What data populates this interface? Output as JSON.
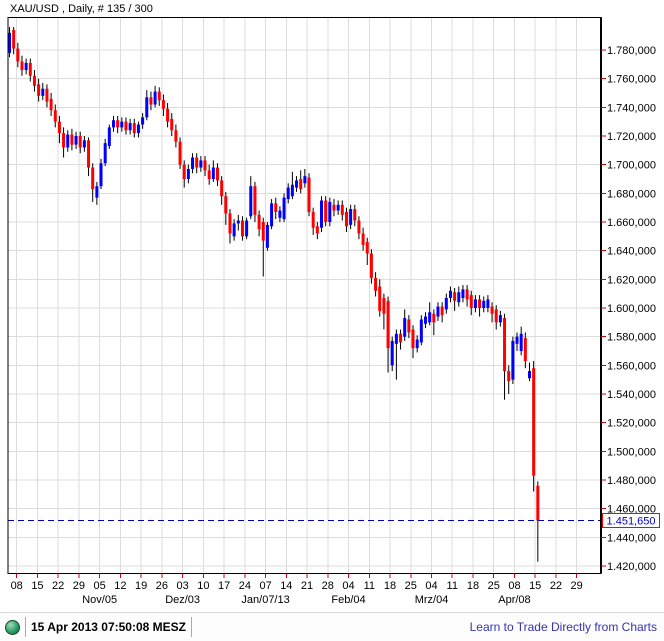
{
  "title": "XAU/USD , Daily, # 135 / 300",
  "current_price": {
    "value": 1451.65,
    "label": "1.451,650"
  },
  "status_bar": {
    "timestamp": "15 Apr 2013 07:50:08 MESZ",
    "link_label": "Learn to Trade Directly from Charts",
    "indicator": "green-sphere"
  },
  "colors": {
    "up_candle": "#0000ff",
    "down_candle": "#ff0000",
    "wick": "#000000",
    "grid": "#dcdcdc",
    "axis_tick": "#dd0000",
    "border": "#000000",
    "current_price_line": "#0000b4",
    "current_price_text": "#0000cc",
    "current_price_box_border": "#ff0000",
    "link_text": "#3333b3"
  },
  "chart_data": {
    "type": "candlestick",
    "symbol": "XAU/USD",
    "timeframe": "Daily",
    "bar_counter": "# 135 / 300",
    "title": "XAU/USD , Daily, # 135 / 300",
    "grid": true,
    "legend_position": "none",
    "y_axis": {
      "side": "right",
      "min": 1420,
      "max": 1780,
      "step": 20,
      "tick_labels": [
        "1.780,000",
        "1.760,000",
        "1.740,000",
        "1.720,000",
        "1.700,000",
        "1.680,000",
        "1.660,000",
        "1.640,000",
        "1.620,000",
        "1.600,000",
        "1.580,000",
        "1.560,000",
        "1.540,000",
        "1.520,000",
        "1.500,000",
        "1.480,000",
        "1.460,000",
        "1.440,000",
        "1.420,000"
      ],
      "tick_values": [
        1780,
        1760,
        1740,
        1720,
        1700,
        1680,
        1660,
        1640,
        1620,
        1600,
        1580,
        1560,
        1540,
        1520,
        1500,
        1480,
        1460,
        1440,
        1420
      ]
    },
    "x_axis": {
      "tick_labels": [
        "08",
        "15",
        "22",
        "29",
        "05",
        "12",
        "19",
        "26",
        "03",
        "10",
        "17",
        "24",
        "07",
        "14",
        "21",
        "28",
        "04",
        "11",
        "18",
        "25",
        "04",
        "11",
        "18",
        "25",
        "08",
        "15",
        "22",
        "29"
      ],
      "month_labels": [
        {
          "text": "Nov/05",
          "tick_index": 4
        },
        {
          "text": "Dez/03",
          "tick_index": 8
        },
        {
          "text": "Jan/07/13",
          "tick_index": 12
        },
        {
          "text": "Feb/04",
          "tick_index": 16
        },
        {
          "text": "Mrz/04",
          "tick_index": 20
        },
        {
          "text": "Apr/08",
          "tick_index": 24
        }
      ]
    },
    "current_price": 1451.65,
    "candles_ohlc": [
      [
        1778,
        1796,
        1775,
        1792
      ],
      [
        1794,
        1796,
        1777,
        1781
      ],
      [
        1781,
        1785,
        1768,
        1772
      ],
      [
        1772,
        1776,
        1762,
        1766
      ],
      [
        1766,
        1774,
        1763,
        1771
      ],
      [
        1771,
        1774,
        1758,
        1762
      ],
      [
        1762,
        1766,
        1751,
        1755
      ],
      [
        1756,
        1760,
        1744,
        1748
      ],
      [
        1748,
        1757,
        1745,
        1753
      ],
      [
        1753,
        1756,
        1740,
        1744
      ],
      [
        1746,
        1750,
        1734,
        1738
      ],
      [
        1738,
        1742,
        1726,
        1730
      ],
      [
        1730,
        1734,
        1715,
        1722
      ],
      [
        1722,
        1726,
        1705,
        1712
      ],
      [
        1712,
        1724,
        1709,
        1721
      ],
      [
        1721,
        1725,
        1710,
        1714
      ],
      [
        1714,
        1723,
        1711,
        1720
      ],
      [
        1720,
        1723,
        1708,
        1712
      ],
      [
        1712,
        1720,
        1709,
        1717
      ],
      [
        1717,
        1719,
        1692,
        1698
      ],
      [
        1698,
        1701,
        1674,
        1683
      ],
      [
        1677,
        1688,
        1672,
        1685
      ],
      [
        1685,
        1704,
        1683,
        1701
      ],
      [
        1701,
        1718,
        1699,
        1715
      ],
      [
        1713,
        1728,
        1711,
        1726
      ],
      [
        1726,
        1734,
        1723,
        1731
      ],
      [
        1731,
        1734,
        1722,
        1726
      ],
      [
        1726,
        1733,
        1723,
        1730
      ],
      [
        1730,
        1733,
        1721,
        1724
      ],
      [
        1724,
        1732,
        1721,
        1729
      ],
      [
        1729,
        1732,
        1719,
        1722
      ],
      [
        1722,
        1730,
        1719,
        1728
      ],
      [
        1728,
        1736,
        1725,
        1733
      ],
      [
        1733,
        1752,
        1731,
        1747
      ],
      [
        1747,
        1751,
        1738,
        1742
      ],
      [
        1742,
        1755,
        1740,
        1751
      ],
      [
        1751,
        1754,
        1741,
        1745
      ],
      [
        1745,
        1749,
        1734,
        1739
      ],
      [
        1739,
        1743,
        1726,
        1730
      ],
      [
        1732,
        1736,
        1720,
        1724
      ],
      [
        1724,
        1728,
        1712,
        1716
      ],
      [
        1716,
        1719,
        1697,
        1700
      ],
      [
        1700,
        1703,
        1684,
        1690
      ],
      [
        1690,
        1700,
        1687,
        1697
      ],
      [
        1697,
        1708,
        1694,
        1705
      ],
      [
        1705,
        1708,
        1694,
        1698
      ],
      [
        1698,
        1706,
        1695,
        1703
      ],
      [
        1703,
        1706,
        1692,
        1696
      ],
      [
        1696,
        1700,
        1686,
        1690
      ],
      [
        1690,
        1703,
        1688,
        1698
      ],
      [
        1698,
        1701,
        1685,
        1689
      ],
      [
        1689,
        1692,
        1672,
        1678
      ],
      [
        1678,
        1681,
        1658,
        1666
      ],
      [
        1666,
        1669,
        1645,
        1652
      ],
      [
        1650,
        1662,
        1647,
        1659
      ],
      [
        1659,
        1665,
        1654,
        1661
      ],
      [
        1661,
        1664,
        1647,
        1650
      ],
      [
        1650,
        1663,
        1648,
        1661
      ],
      [
        1664,
        1692,
        1662,
        1685
      ],
      [
        1685,
        1688,
        1660,
        1665
      ],
      [
        1665,
        1668,
        1650,
        1655
      ],
      [
        1660,
        1663,
        1622,
        1647
      ],
      [
        1642,
        1660,
        1640,
        1658
      ],
      [
        1657,
        1676,
        1655,
        1673
      ],
      [
        1673,
        1677,
        1662,
        1667
      ],
      [
        1663,
        1671,
        1660,
        1668
      ],
      [
        1662,
        1680,
        1660,
        1677
      ],
      [
        1676,
        1687,
        1673,
        1684
      ],
      [
        1678,
        1695,
        1676,
        1686
      ],
      [
        1684,
        1692,
        1681,
        1689
      ],
      [
        1690,
        1696,
        1680,
        1683
      ],
      [
        1687,
        1697,
        1684,
        1692
      ],
      [
        1691,
        1694,
        1664,
        1667
      ],
      [
        1667,
        1670,
        1651,
        1656
      ],
      [
        1657,
        1660,
        1648,
        1652
      ],
      [
        1656,
        1678,
        1653,
        1675
      ],
      [
        1675,
        1678,
        1657,
        1660
      ],
      [
        1660,
        1677,
        1657,
        1674
      ],
      [
        1672,
        1676,
        1664,
        1668
      ],
      [
        1668,
        1675,
        1665,
        1672
      ],
      [
        1672,
        1675,
        1661,
        1665
      ],
      [
        1667,
        1670,
        1653,
        1657
      ],
      [
        1658,
        1672,
        1655,
        1669
      ],
      [
        1669,
        1672,
        1657,
        1661
      ],
      [
        1661,
        1664,
        1648,
        1652
      ],
      [
        1652,
        1656,
        1640,
        1644
      ],
      [
        1646,
        1649,
        1630,
        1638
      ],
      [
        1638,
        1641,
        1617,
        1621
      ],
      [
        1621,
        1625,
        1608,
        1612
      ],
      [
        1615,
        1620,
        1594,
        1598
      ],
      [
        1607,
        1610,
        1585,
        1596
      ],
      [
        1605,
        1608,
        1555,
        1572
      ],
      [
        1560,
        1580,
        1556,
        1577
      ],
      [
        1575,
        1585,
        1550,
        1582
      ],
      [
        1582,
        1585,
        1571,
        1576
      ],
      [
        1580,
        1599,
        1577,
        1593
      ],
      [
        1592,
        1595,
        1579,
        1583
      ],
      [
        1585,
        1588,
        1565,
        1572
      ],
      [
        1572,
        1581,
        1569,
        1578
      ],
      [
        1576,
        1595,
        1574,
        1592
      ],
      [
        1589,
        1597,
        1586,
        1594
      ],
      [
        1590,
        1604,
        1588,
        1597
      ],
      [
        1596,
        1599,
        1581,
        1590
      ],
      [
        1594,
        1604,
        1591,
        1601
      ],
      [
        1601,
        1604,
        1590,
        1595
      ],
      [
        1599,
        1610,
        1596,
        1607
      ],
      [
        1607,
        1615,
        1604,
        1612
      ],
      [
        1611,
        1614,
        1598,
        1605
      ],
      [
        1604,
        1615,
        1601,
        1611
      ],
      [
        1607,
        1616,
        1604,
        1613
      ],
      [
        1613,
        1616,
        1601,
        1606
      ],
      [
        1609,
        1612,
        1595,
        1600
      ],
      [
        1600,
        1609,
        1597,
        1606
      ],
      [
        1606,
        1609,
        1594,
        1600
      ],
      [
        1600,
        1608,
        1597,
        1605
      ],
      [
        1600,
        1609,
        1597,
        1606
      ],
      [
        1601,
        1604,
        1590,
        1596
      ],
      [
        1599,
        1602,
        1585,
        1590
      ],
      [
        1590,
        1598,
        1587,
        1595
      ],
      [
        1593,
        1596,
        1536,
        1556
      ],
      [
        1556,
        1560,
        1540,
        1549
      ],
      [
        1550,
        1580,
        1547,
        1577
      ],
      [
        1575,
        1583,
        1570,
        1580
      ],
      [
        1570,
        1587,
        1567,
        1582
      ],
      [
        1579,
        1583,
        1558,
        1563
      ],
      [
        1551,
        1562,
        1549,
        1556
      ],
      [
        1558,
        1563,
        1472,
        1483
      ],
      [
        1476,
        1479,
        1423,
        1451.65
      ]
    ]
  }
}
